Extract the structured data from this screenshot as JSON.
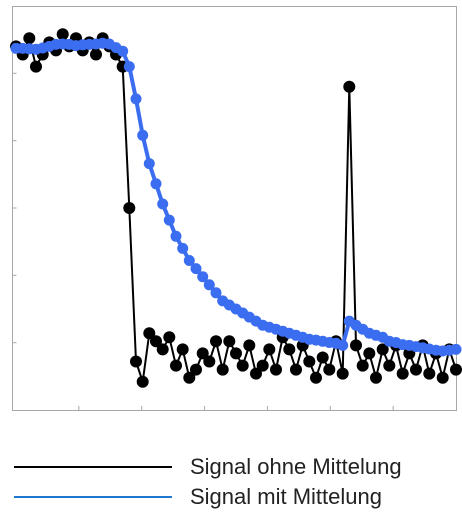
{
  "chart_data": {
    "type": "line",
    "title": "",
    "xlabel": "",
    "ylabel": "",
    "grid": false,
    "legend_position": "bottom",
    "xlim": [
      0,
      66
    ],
    "ylim": [
      0,
      100
    ],
    "series": [
      {
        "name": "Signal ohne Mittelung",
        "color": "#000000",
        "x": [
          0,
          1,
          2,
          3,
          4,
          5,
          6,
          7,
          8,
          9,
          10,
          11,
          12,
          13,
          14,
          15,
          16,
          17,
          18,
          19,
          20,
          21,
          22,
          23,
          24,
          25,
          26,
          27,
          28,
          29,
          30,
          31,
          32,
          33,
          34,
          35,
          36,
          37,
          38,
          39,
          40,
          41,
          42,
          43,
          44,
          45,
          46,
          47,
          48,
          49,
          50,
          51,
          52,
          53,
          54,
          55,
          56,
          57,
          58,
          59,
          60,
          61,
          62,
          63,
          64,
          65,
          66
        ],
        "y": [
          90,
          88,
          92,
          85,
          88,
          91,
          89,
          93,
          90,
          92,
          89,
          91,
          88,
          92,
          90,
          88,
          85,
          50,
          12,
          7,
          19,
          17,
          15,
          18,
          11,
          15,
          8,
          10,
          14,
          12,
          17,
          10,
          17,
          14,
          11,
          16,
          9,
          11,
          15,
          10,
          18,
          15,
          10,
          16,
          12,
          8,
          13,
          10,
          17,
          9,
          80,
          16,
          11,
          14,
          8,
          15,
          11,
          16,
          9,
          14,
          10,
          16,
          9,
          14,
          8,
          15,
          10
        ],
        "markers": true
      },
      {
        "name": "Signal mit Mittelung",
        "color": "#3b6df0",
        "x": [
          0,
          1,
          2,
          3,
          4,
          5,
          6,
          7,
          8,
          9,
          10,
          11,
          12,
          13,
          14,
          15,
          16,
          17,
          18,
          19,
          20,
          21,
          22,
          23,
          24,
          25,
          26,
          27,
          28,
          29,
          30,
          31,
          32,
          33,
          34,
          35,
          36,
          37,
          38,
          39,
          40,
          41,
          42,
          43,
          44,
          45,
          46,
          47,
          48,
          49,
          50,
          51,
          52,
          53,
          54,
          55,
          56,
          57,
          58,
          59,
          60,
          61,
          62,
          63,
          64,
          65,
          66
        ],
        "y": [
          89.5,
          89.5,
          89.4,
          89.3,
          89.6,
          90,
          90.5,
          90.6,
          90.5,
          90.2,
          90.4,
          90.5,
          90.6,
          90.8,
          90.6,
          89.7,
          88.8,
          85,
          77,
          68,
          61,
          56,
          51,
          47,
          43,
          40,
          37,
          35,
          33,
          31,
          29,
          27,
          26,
          25,
          24,
          23,
          22,
          21,
          20.5,
          20,
          19.5,
          19,
          18.5,
          18,
          17.5,
          17.3,
          17,
          16.7,
          16.5,
          16,
          22,
          21,
          20,
          19,
          18.5,
          18,
          17,
          16.7,
          16.2,
          16,
          15.7,
          15.4,
          15.1,
          14.8,
          14.6,
          14.8,
          15
        ]
      }
    ]
  },
  "legend": {
    "items": [
      {
        "label": "Signal ohne Mittelung",
        "color": "#000000"
      },
      {
        "label": "Signal mit Mittelung",
        "color": "#1f77d0"
      }
    ]
  }
}
